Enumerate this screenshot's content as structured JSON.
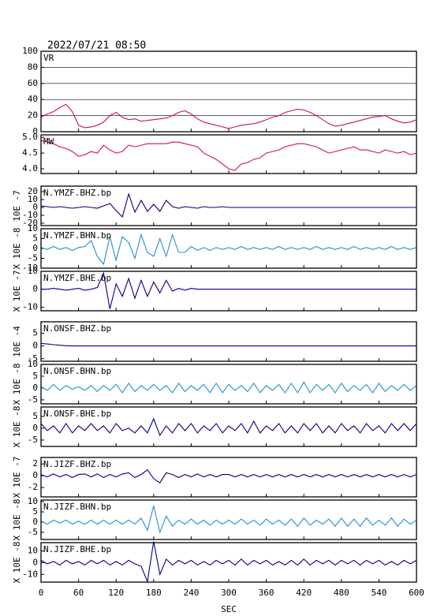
{
  "chart_data": {
    "type": "line",
    "title": "2022/07/21 08:50",
    "xlabel": "SEC",
    "xlim": [
      0,
      600
    ],
    "xticks": [
      0,
      60,
      120,
      180,
      240,
      300,
      360,
      420,
      480,
      540,
      600
    ],
    "x": [
      0,
      10,
      20,
      30,
      40,
      50,
      60,
      70,
      80,
      90,
      100,
      110,
      120,
      130,
      140,
      150,
      160,
      170,
      180,
      190,
      200,
      210,
      220,
      230,
      240,
      250,
      260,
      270,
      280,
      290,
      300,
      310,
      320,
      330,
      340,
      350,
      360,
      370,
      380,
      390,
      400,
      410,
      420,
      430,
      440,
      450,
      460,
      470,
      480,
      490,
      500,
      510,
      520,
      530,
      540,
      550,
      560,
      570,
      580,
      590,
      600
    ],
    "panels": [
      {
        "name": "VR",
        "color": "#d0104c",
        "grid": true,
        "ylim": [
          0,
          100
        ],
        "yticks": [
          0,
          20,
          40,
          60,
          80,
          100
        ],
        "values": [
          18,
          22,
          25,
          30,
          34,
          25,
          8,
          5,
          6,
          8,
          12,
          20,
          24,
          18,
          15,
          16,
          13,
          14,
          15,
          16,
          17,
          20,
          24,
          26,
          22,
          16,
          12,
          10,
          8,
          6,
          4,
          6,
          8,
          9,
          10,
          12,
          15,
          18,
          20,
          24,
          26,
          28,
          27,
          24,
          20,
          15,
          10,
          7,
          8,
          10,
          12,
          14,
          16,
          18,
          19,
          20,
          16,
          13,
          11,
          12,
          15
        ]
      },
      {
        "name": "MW",
        "color": "#d0104c",
        "ylim": [
          3.85,
          5.08
        ],
        "yticks": [
          {
            "value": 4,
            "label": "4.0"
          },
          4.5,
          {
            "value": 5,
            "label": "5.0"
          }
        ],
        "values": [
          4.9,
          4.85,
          4.8,
          4.7,
          4.65,
          4.55,
          4.4,
          4.45,
          4.55,
          4.5,
          4.75,
          4.6,
          4.5,
          4.55,
          4.75,
          4.7,
          4.75,
          4.8,
          4.8,
          4.8,
          4.8,
          4.85,
          4.85,
          4.8,
          4.75,
          4.7,
          4.5,
          4.4,
          4.3,
          4.15,
          4.0,
          3.95,
          4.15,
          4.2,
          4.3,
          4.35,
          4.5,
          4.55,
          4.6,
          4.7,
          4.75,
          4.8,
          4.8,
          4.75,
          4.7,
          4.6,
          4.5,
          4.55,
          4.6,
          4.65,
          4.7,
          4.6,
          4.6,
          4.55,
          4.5,
          4.6,
          4.55,
          4.5,
          4.55,
          4.45,
          4.5
        ]
      },
      {
        "name": "N.YMZF.BHZ.bp",
        "ylabel": "10E -7",
        "color": "#000080",
        "ylim": [
          -23,
          27
        ],
        "yticks": [
          -20,
          -10,
          0,
          10,
          20
        ],
        "values": [
          2,
          1,
          0,
          1,
          0,
          -1,
          0,
          1,
          0,
          -1,
          2,
          5,
          -4,
          -12,
          17,
          -6,
          9,
          -5,
          4,
          -5,
          9,
          1,
          -1,
          1,
          0,
          -1,
          1,
          0,
          0,
          1,
          0,
          0,
          0,
          0,
          0,
          0,
          0,
          0,
          0,
          0,
          0,
          0,
          0,
          0,
          0,
          0,
          0,
          0,
          0,
          0,
          0,
          0,
          0,
          0,
          0,
          0,
          0,
          0,
          0,
          0,
          0
        ]
      },
      {
        "name": "N.YMZF.BHN.bp",
        "ylabel": "X 10E -8",
        "color": "#2090d0",
        "ylim": [
          -10,
          10
        ],
        "yticks": [
          -10,
          -5,
          0,
          5,
          10
        ],
        "values": [
          0.5,
          -0.5,
          1,
          -0.5,
          0.5,
          -1,
          0.5,
          1,
          4,
          -4,
          -8,
          6,
          -6,
          6,
          3,
          -5,
          7,
          -2,
          -4,
          5,
          -4,
          7,
          -2,
          -2,
          1,
          -1,
          0.5,
          -1,
          0.5,
          -0.5,
          0.5,
          -0.5,
          1,
          -0.5,
          0.5,
          -0.5,
          0.5,
          -0.5,
          1,
          -0.5,
          0.5,
          -0.5,
          0.5,
          -0.5,
          1,
          -0.5,
          0.5,
          -0.5,
          0.5,
          -0.5,
          1,
          -0.5,
          0.5,
          -0.5,
          0.5,
          -0.5,
          1,
          -0.5,
          0.5,
          -0.5,
          0.5
        ]
      },
      {
        "name": "N.YMZF.BHE.bp",
        "ylabel": "X 10E -7",
        "color": "#000080",
        "ylim": [
          -12,
          10
        ],
        "yticks": [
          -10,
          0,
          10
        ],
        "values": [
          0,
          0,
          0.5,
          0,
          -0.5,
          0,
          0.5,
          -0.5,
          0,
          1,
          9,
          -11,
          3,
          -4,
          6,
          -5,
          5,
          -4,
          4,
          -2,
          5,
          -1,
          0.5,
          -0.5,
          0.5,
          0,
          0,
          0,
          0,
          0,
          0,
          0,
          0,
          0,
          0,
          0,
          0,
          0,
          0,
          0,
          0,
          0,
          0,
          0,
          0,
          0,
          0,
          0,
          0,
          0,
          0,
          0,
          0,
          0,
          0,
          0,
          0,
          0,
          0,
          0,
          0
        ]
      },
      {
        "name": "N.ONSF.BHZ.bp",
        "ylabel": "10E -4",
        "color": "#000080",
        "ylim": [
          -6,
          9.5
        ],
        "yticks": [
          -5,
          0,
          5
        ],
        "values": [
          1,
          0.8,
          0.5,
          0.3,
          0.1,
          0,
          0,
          0,
          0,
          0,
          0,
          0,
          0,
          0,
          0,
          0,
          0,
          0,
          0,
          0,
          0,
          0,
          0,
          0,
          0,
          0,
          0,
          0,
          0,
          0,
          0,
          0,
          0,
          0,
          0,
          0,
          0,
          0,
          0,
          0,
          0,
          0,
          0,
          0,
          0,
          0,
          0,
          0,
          0,
          0,
          0,
          0,
          0,
          0,
          0,
          0,
          0,
          0,
          0,
          0,
          0
        ]
      },
      {
        "name": "N.ONSF.BHN.bp",
        "ylabel": "X 10E -8",
        "color": "#2090d0",
        "ylim": [
          -6.7,
          10
        ],
        "yticks": [
          -5,
          0,
          5,
          10
        ],
        "values": [
          0.5,
          -1,
          1.5,
          -1,
          1,
          -0.5,
          0.5,
          -1,
          1,
          -1.5,
          1,
          -1,
          1.5,
          -2,
          2,
          -1.5,
          1,
          -1,
          1.5,
          -1,
          1,
          -2,
          2,
          -1.5,
          1,
          -1,
          1.5,
          -2,
          2,
          -2,
          1.5,
          -1,
          1,
          -1.5,
          2,
          -2,
          1,
          -1,
          1.5,
          -2,
          2,
          -2,
          2.5,
          -2,
          1.5,
          -1,
          1.5,
          -2,
          2,
          -1.5,
          1,
          -1,
          1.5,
          -2,
          2,
          -1.5,
          1,
          -1,
          1.5,
          -1,
          1
        ]
      },
      {
        "name": "N.ONSF.BHE.bp",
        "ylabel": "X 10E -8",
        "color": "#000080",
        "ylim": [
          -7.7,
          9
        ],
        "yticks": [
          -5,
          0,
          5
        ],
        "values": [
          2,
          -1,
          1,
          -2,
          2,
          -2,
          1,
          -1,
          2,
          -1,
          1,
          -2,
          2,
          -1,
          0,
          -2,
          1,
          -2,
          4,
          -3,
          1,
          -2,
          2,
          -1,
          2,
          -2,
          1,
          -1,
          2,
          -2,
          1,
          -1,
          2,
          -2,
          3,
          -2,
          1,
          -1,
          2,
          -2,
          1,
          -2,
          2,
          -1,
          2,
          -2,
          1,
          -2,
          2,
          -1,
          1,
          -2,
          2,
          -1,
          1,
          -2,
          2,
          -1,
          2,
          -1,
          2
        ]
      },
      {
        "name": "N.JIZF.BHZ.bp",
        "ylabel": "X 10E -7",
        "color": "#000080",
        "ylim": [
          -3.6,
          3.1
        ],
        "yticks": [
          -2,
          0,
          2
        ],
        "values": [
          0.2,
          -0.2,
          0.3,
          -0.2,
          0.2,
          -0.3,
          0.2,
          0.3,
          -0.2,
          0.3,
          -0.3,
          0.2,
          -0.2,
          0.3,
          0.5,
          -0.3,
          0.2,
          1,
          -0.5,
          -1.2,
          0.5,
          0.2,
          -0.3,
          0.2,
          -0.2,
          0.3,
          -0.2,
          0.2,
          -0.2,
          0.2,
          0.2,
          -0.2,
          0.2,
          -0.2,
          0.2,
          -0.2,
          0.2,
          -0.2,
          0.2,
          -0.2,
          0.2,
          -0.2,
          0.2,
          -0.2,
          0.2,
          -0.2,
          0.2,
          -0.2,
          0.2,
          -0.2,
          0.2,
          -0.2,
          0.2,
          -0.2,
          0.2,
          -0.2,
          0.2,
          -0.2,
          0.2,
          -0.2,
          0.2
        ]
      },
      {
        "name": "N.JIZF.BHN.bp",
        "ylabel": "X 10E -8",
        "color": "#2090d0",
        "ylim": [
          -8.5,
          10.8
        ],
        "yticks": [
          -5,
          0,
          5,
          10
        ],
        "values": [
          0.5,
          -1,
          1,
          -0.5,
          1,
          -1,
          0.5,
          -1,
          1,
          -1,
          1,
          -1,
          1,
          -1,
          1,
          -1,
          2,
          -4,
          8,
          -5,
          3,
          -2,
          1,
          -1,
          1.5,
          -1,
          1,
          -1.5,
          1,
          -1,
          1,
          -1,
          1.5,
          -1,
          1,
          -1.5,
          1.5,
          -1,
          1,
          -1.5,
          1.5,
          -2,
          2,
          -1.5,
          1,
          -1,
          1.5,
          -2,
          2,
          -2,
          1.5,
          -2,
          2,
          -1.5,
          1,
          -1.5,
          2,
          -2,
          1.5,
          -1,
          1
        ]
      },
      {
        "name": "N.JIZF.BHE.bp",
        "ylabel": "X 10E -8",
        "color": "#000080",
        "ylim": [
          -16.5,
          17
        ],
        "yticks": [
          -10,
          0,
          10
        ],
        "values": [
          2,
          -1,
          1,
          -2,
          2,
          -1,
          1,
          -2,
          2,
          -1,
          2,
          -2,
          1,
          -2,
          2,
          -1,
          -3,
          -16,
          18,
          -10,
          3,
          -2,
          2,
          -1,
          2,
          -2,
          1,
          -2,
          2,
          -1,
          2,
          -2,
          3,
          -2,
          2,
          -1,
          2,
          -2,
          1,
          -2,
          2,
          -2,
          3,
          -2,
          2,
          -1,
          2,
          -2,
          2,
          -1,
          2,
          -2,
          2,
          -1,
          2,
          -2,
          1,
          -2,
          2,
          -1,
          2
        ]
      }
    ]
  }
}
